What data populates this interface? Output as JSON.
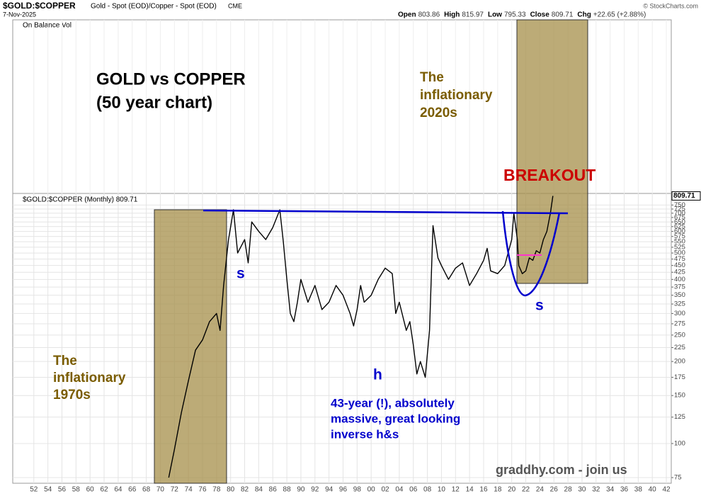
{
  "chart_data": {
    "type": "line",
    "title": "$GOLD:$COPPER",
    "subtitle": "Gold - Spot (EOD)/Copper - Spot (EOD)",
    "exchange": "CME",
    "date": "7-Nov-2025",
    "watermark": "© StockCharts.com",
    "quote": [
      {
        "label": "Open",
        "value": "803.86"
      },
      {
        "label": "High",
        "value": "815.97"
      },
      {
        "label": "Low",
        "value": "795.33"
      },
      {
        "label": "Close",
        "value": "809.71"
      },
      {
        "label": "Chg",
        "value": "+22.65 (+2.88%)"
      }
    ],
    "upper_panel_label": "On Balance Vol",
    "last_value_label": "809.71",
    "annotations": {
      "title_line1": "GOLD vs COPPER",
      "title_line2": "(50 year chart)",
      "infl2020_1": "The",
      "infl2020_2": "inflationary",
      "infl2020_3": "2020s",
      "breakout": "BREAKOUT",
      "infl1970_1": "The",
      "infl1970_2": "inflationary",
      "infl1970_3": "1970s",
      "left_shoulder": "s",
      "head": "h",
      "right_shoulder": "s",
      "note1": "43-year (!), absolutely",
      "note2": "massive, great looking",
      "note3": "inverse h&s",
      "credit": "graddhy.com - join us"
    },
    "yscale": "log",
    "grid": true,
    "xlim": [
      1949,
      2042.7
    ],
    "ylim": [
      71.5,
      827
    ],
    "yticks": [
      75,
      100,
      125,
      150,
      175,
      200,
      225,
      250,
      275,
      300,
      325,
      350,
      375,
      400,
      425,
      450,
      475,
      500,
      525,
      550,
      575,
      600,
      625,
      650,
      675,
      700,
      725,
      750
    ],
    "xticks": [
      {
        "value": 1952,
        "label": "52"
      },
      {
        "value": 1954,
        "label": "54"
      },
      {
        "value": 1956,
        "label": "56"
      },
      {
        "value": 1958,
        "label": "58"
      },
      {
        "value": 1960,
        "label": "60"
      },
      {
        "value": 1962,
        "label": "62"
      },
      {
        "value": 1964,
        "label": "64"
      },
      {
        "value": 1966,
        "label": "66"
      },
      {
        "value": 1968,
        "label": "68"
      },
      {
        "value": 1970,
        "label": "70"
      },
      {
        "value": 1972,
        "label": "72"
      },
      {
        "value": 1974,
        "label": "74"
      },
      {
        "value": 1976,
        "label": "76"
      },
      {
        "value": 1978,
        "label": "78"
      },
      {
        "value": 1980,
        "label": "80"
      },
      {
        "value": 1982,
        "label": "82"
      },
      {
        "value": 1984,
        "label": "84"
      },
      {
        "value": 1986,
        "label": "86"
      },
      {
        "value": 1988,
        "label": "88"
      },
      {
        "value": 1990,
        "label": "90"
      },
      {
        "value": 1992,
        "label": "92"
      },
      {
        "value": 1994,
        "label": "94"
      },
      {
        "value": 1996,
        "label": "96"
      },
      {
        "value": 1998,
        "label": "98"
      },
      {
        "value": 2000,
        "label": "00"
      },
      {
        "value": 2002,
        "label": "02"
      },
      {
        "value": 2004,
        "label": "04"
      },
      {
        "value": 2006,
        "label": "06"
      },
      {
        "value": 2008,
        "label": "08"
      },
      {
        "value": 2010,
        "label": "10"
      },
      {
        "value": 2012,
        "label": "12"
      },
      {
        "value": 2014,
        "label": "14"
      },
      {
        "value": 2016,
        "label": "16"
      },
      {
        "value": 2018,
        "label": "18"
      },
      {
        "value": 2020,
        "label": "20"
      },
      {
        "value": 2022,
        "label": "22"
      },
      {
        "value": 2024,
        "label": "24"
      },
      {
        "value": 2026,
        "label": "26"
      },
      {
        "value": 2028,
        "label": "28"
      },
      {
        "value": 2030,
        "label": "30"
      },
      {
        "value": 2032,
        "label": "32"
      },
      {
        "value": 2034,
        "label": "34"
      },
      {
        "value": 2036,
        "label": "36"
      },
      {
        "value": 2038,
        "label": "38"
      },
      {
        "value": 2040,
        "label": "40"
      },
      {
        "value": 2042,
        "label": "42"
      }
    ],
    "x": [
      1971.2,
      1972,
      1973,
      1974,
      1975,
      1976,
      1977,
      1978,
      1978.5,
      1979,
      1979.7,
      1980.4,
      1981,
      1982,
      1982.5,
      1983,
      1984,
      1985,
      1986,
      1987,
      1987.5,
      1988,
      1988.5,
      1989,
      1989.5,
      1990,
      1991,
      1992,
      1993,
      1994,
      1995,
      1996,
      1997,
      1997.5,
      1998,
      1998.5,
      1999,
      2000,
      2001,
      2002,
      2003,
      2003.5,
      2004,
      2005,
      2005.5,
      2006,
      2006.5,
      2007,
      2007.7,
      2008.3,
      2008.8,
      2009.5,
      2010,
      2011,
      2012,
      2013,
      2014,
      2015,
      2016,
      2016.5,
      2017,
      2018,
      2019,
      2020,
      2020.3,
      2020.8,
      2021,
      2021.5,
      2022,
      2022.5,
      2023,
      2023.5,
      2024,
      2024.5,
      2025,
      2025.5,
      2025.85
    ],
    "series": [
      {
        "name": "$GOLD:$COPPER (Monthly) 809.71",
        "color": "#000000",
        "values": [
          75,
          95,
          130,
          170,
          220,
          240,
          280,
          300,
          260,
          380,
          560,
          720,
          500,
          560,
          460,
          650,
          600,
          560,
          620,
          720,
          550,
          400,
          300,
          280,
          330,
          400,
          330,
          380,
          310,
          330,
          380,
          350,
          300,
          270,
          310,
          380,
          330,
          350,
          400,
          440,
          420,
          300,
          330,
          260,
          280,
          230,
          180,
          200,
          175,
          260,
          630,
          480,
          450,
          400,
          440,
          460,
          380,
          420,
          470,
          520,
          430,
          420,
          450,
          560,
          700,
          560,
          450,
          420,
          430,
          480,
          470,
          510,
          500,
          560,
          600,
          700,
          809.71
        ]
      }
    ]
  }
}
